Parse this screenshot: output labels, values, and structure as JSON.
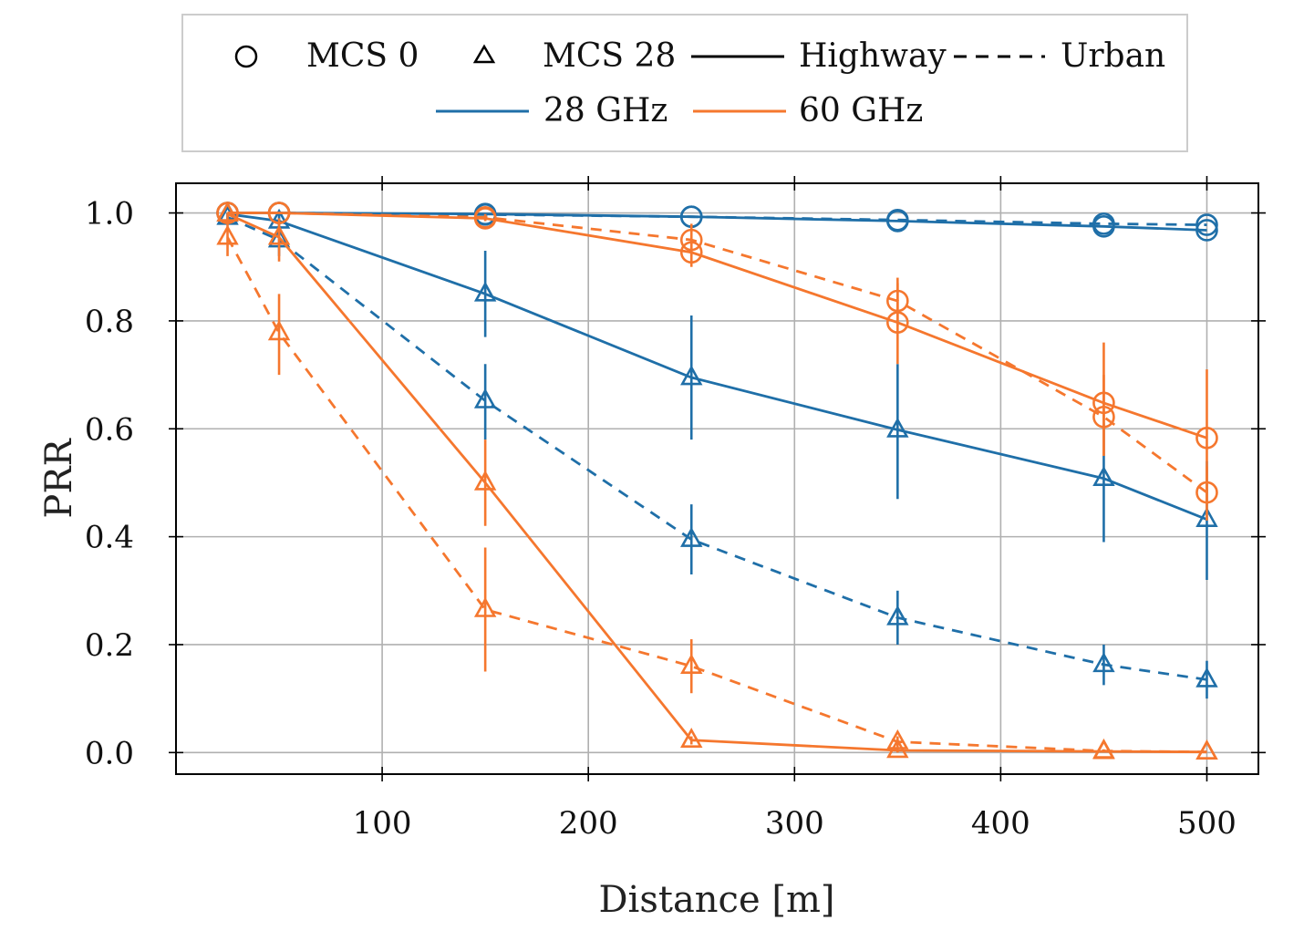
{
  "chart_data": {
    "type": "line",
    "title": "",
    "xlabel": "Distance [m]",
    "ylabel": "PRR",
    "xlim": [
      0,
      525
    ],
    "ylim": [
      -0.04,
      1.055
    ],
    "xticks": [
      100,
      200,
      300,
      400,
      500
    ],
    "xtick_labels": [
      "100",
      "200",
      "300",
      "400",
      "500"
    ],
    "yticks": [
      0.0,
      0.2,
      0.4,
      0.6,
      0.8,
      1.0
    ],
    "ytick_labels": [
      "0.0",
      "0.2",
      "0.4",
      "0.6",
      "0.8",
      "1.0"
    ],
    "grid": true,
    "legend": {
      "placement": "top-center, outside plot",
      "entries": [
        {
          "label": "MCS 0",
          "kind": "marker",
          "marker": "circle",
          "color": "#000000"
        },
        {
          "label": "MCS 28",
          "kind": "marker",
          "marker": "triangle",
          "color": "#000000"
        },
        {
          "label": "Highway",
          "kind": "line",
          "dash": "solid",
          "color": "#000000"
        },
        {
          "label": "Urban",
          "kind": "line",
          "dash": "dashed",
          "color": "#000000"
        },
        {
          "label": "28 GHz",
          "kind": "line",
          "dash": "solid",
          "color": "#1f6fa8"
        },
        {
          "label": "60 GHz",
          "kind": "line",
          "dash": "solid",
          "color": "#f5772e"
        }
      ]
    },
    "colors": {
      "28 GHz": "#1f6fa8",
      "60 GHz": "#f5772e"
    },
    "x": [
      25,
      50,
      150,
      250,
      350,
      450,
      500
    ],
    "series": [
      {
        "name": "28 GHz MCS 0 Highway",
        "freq": "28 GHz",
        "mcs": "MCS 0",
        "scenario": "Highway",
        "marker": "circle",
        "dash": "solid",
        "values": [
          1.0,
          1.0,
          0.998,
          0.993,
          0.985,
          0.975,
          0.968
        ],
        "err_low": [
          1.0,
          1.0,
          0.998,
          0.993,
          0.985,
          0.975,
          0.968
        ],
        "err_high": [
          1.0,
          1.0,
          0.998,
          0.993,
          0.985,
          0.975,
          0.968
        ]
      },
      {
        "name": "28 GHz MCS 0 Urban",
        "freq": "28 GHz",
        "mcs": "MCS 0",
        "scenario": "Urban",
        "marker": "circle",
        "dash": "dashed",
        "values": [
          1.0,
          1.0,
          0.997,
          0.993,
          0.987,
          0.98,
          0.978
        ],
        "err_low": [
          1.0,
          1.0,
          0.997,
          0.993,
          0.987,
          0.98,
          0.978
        ],
        "err_high": [
          1.0,
          1.0,
          0.997,
          0.993,
          0.987,
          0.98,
          0.978
        ]
      },
      {
        "name": "28 GHz MCS 28 Highway",
        "freq": "28 GHz",
        "mcs": "MCS 28",
        "scenario": "Highway",
        "marker": "triangle",
        "dash": "solid",
        "values": [
          0.998,
          0.985,
          0.85,
          0.695,
          0.598,
          0.508,
          0.432
        ],
        "err_low": [
          0.99,
          0.97,
          0.77,
          0.58,
          0.47,
          0.39,
          0.32
        ],
        "err_high": [
          1.0,
          1.0,
          0.93,
          0.81,
          0.72,
          0.61,
          0.54
        ]
      },
      {
        "name": "28 GHz MCS 28 Urban",
        "freq": "28 GHz",
        "mcs": "MCS 28",
        "scenario": "Urban",
        "marker": "triangle",
        "dash": "dashed",
        "values": [
          0.992,
          0.95,
          0.652,
          0.395,
          0.25,
          0.163,
          0.135
        ],
        "err_low": [
          0.98,
          0.92,
          0.58,
          0.33,
          0.2,
          0.125,
          0.1
        ],
        "err_high": [
          1.0,
          0.98,
          0.72,
          0.46,
          0.3,
          0.2,
          0.17
        ]
      },
      {
        "name": "60 GHz MCS 0 Highway",
        "freq": "60 GHz",
        "mcs": "MCS 0",
        "scenario": "Highway",
        "marker": "circle",
        "dash": "solid",
        "values": [
          1.0,
          1.0,
          0.99,
          0.927,
          0.797,
          0.648,
          0.583
        ],
        "err_low": [
          1.0,
          1.0,
          0.985,
          0.9,
          0.72,
          0.55,
          0.46
        ],
        "err_high": [
          1.0,
          1.0,
          0.995,
          0.95,
          0.87,
          0.76,
          0.71
        ]
      },
      {
        "name": "60 GHz MCS 0 Urban",
        "freq": "60 GHz",
        "mcs": "MCS 0",
        "scenario": "Urban",
        "marker": "circle",
        "dash": "dashed",
        "values": [
          1.0,
          1.0,
          0.992,
          0.95,
          0.837,
          0.622,
          0.482
        ],
        "err_low": [
          1.0,
          1.0,
          0.985,
          0.92,
          0.79,
          0.55,
          0.43
        ],
        "err_high": [
          1.0,
          1.0,
          0.998,
          0.98,
          0.88,
          0.7,
          0.53
        ]
      },
      {
        "name": "60 GHz MCS 28 Highway",
        "freq": "60 GHz",
        "mcs": "MCS 28",
        "scenario": "Highway",
        "marker": "triangle",
        "dash": "solid",
        "values": [
          0.998,
          0.955,
          0.5,
          0.023,
          0.004,
          0.002,
          0.001
        ],
        "err_low": [
          0.99,
          0.91,
          0.42,
          0.015,
          0.0,
          0.0,
          0.0
        ],
        "err_high": [
          1.0,
          0.99,
          0.58,
          0.03,
          0.01,
          0.005,
          0.003
        ]
      },
      {
        "name": "60 GHz MCS 28 Urban",
        "freq": "60 GHz",
        "mcs": "MCS 28",
        "scenario": "Urban",
        "marker": "triangle",
        "dash": "dashed",
        "values": [
          0.955,
          0.778,
          0.265,
          0.16,
          0.02,
          0.003,
          0.001
        ],
        "err_low": [
          0.92,
          0.7,
          0.15,
          0.11,
          0.01,
          0.0,
          0.0
        ],
        "err_high": [
          0.99,
          0.85,
          0.38,
          0.21,
          0.03,
          0.006,
          0.003
        ]
      }
    ]
  }
}
